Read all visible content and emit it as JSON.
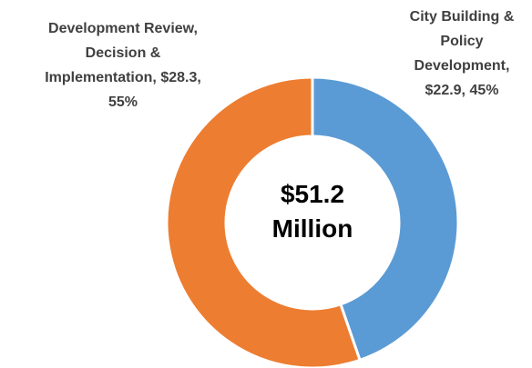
{
  "chart_data": {
    "type": "donut",
    "value_labels": [
      "City Building & Policy Development, $22.9, 45%",
      "Development Review, Decision & Implementation, $28.3, 55%"
    ],
    "values": [
      22.9,
      28.3
    ],
    "percentages": [
      45,
      55
    ],
    "colors": [
      "#5b9bd5",
      "#ed7d31"
    ],
    "center_text": "$51.2 Million"
  }
}
